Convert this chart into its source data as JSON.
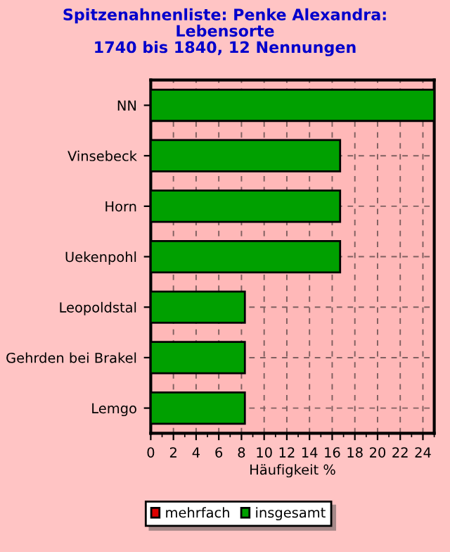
{
  "chart_data": {
    "type": "bar",
    "orientation": "horizontal",
    "title": "Spitzenahnenliste: Penke Alexandra:\nLebensorte\n1740 bis 1840, 12 Nennungen",
    "xlabel": "Häufigkeit %",
    "categories": [
      "NN",
      "Vinsebeck",
      "Horn",
      "Uekenpohl",
      "Leopoldstal",
      "Gehrden bei Brakel",
      "Lemgo"
    ],
    "series": [
      {
        "name": "mehrfach",
        "color": "#dd0000",
        "values": [
          null,
          null,
          null,
          null,
          null,
          null,
          null
        ]
      },
      {
        "name": "insgesamt",
        "color": "#00a000",
        "values": [
          25,
          16.7,
          16.7,
          16.7,
          8.3,
          8.3,
          8.3
        ]
      }
    ],
    "xlim": [
      0,
      25
    ],
    "xticks": [
      0,
      2,
      4,
      6,
      8,
      10,
      12,
      14,
      16,
      18,
      20,
      22,
      24
    ],
    "grid": true,
    "legend": "bottom"
  }
}
